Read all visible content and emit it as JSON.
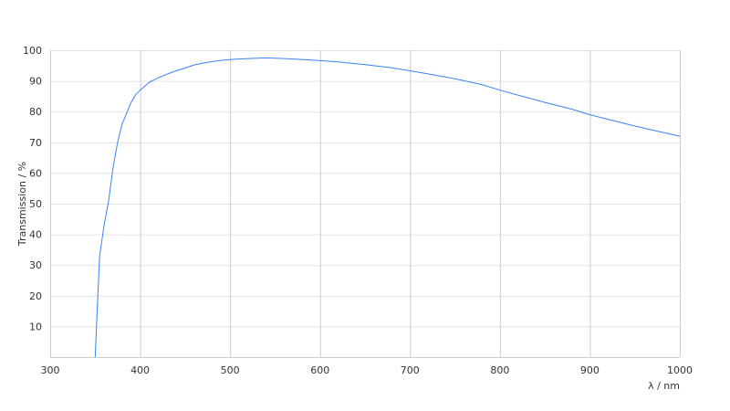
{
  "chart_data": {
    "type": "line",
    "title": "",
    "xlabel": "λ / nm",
    "ylabel": "Transmission / %",
    "xlim": [
      300,
      1000
    ],
    "ylim": [
      0,
      100
    ],
    "xticks": [
      300,
      400,
      500,
      600,
      700,
      800,
      900,
      1000
    ],
    "yticks": [
      10,
      20,
      30,
      40,
      50,
      60,
      70,
      80,
      90,
      100
    ],
    "grid": true,
    "line_color": "#3b82f6",
    "series": [
      {
        "x": [
          350,
          353,
          355,
          360,
          365,
          370,
          375,
          380,
          385,
          390,
          395,
          400,
          410,
          420,
          430,
          440,
          450,
          460,
          470,
          480,
          490,
          500,
          520,
          540,
          560,
          580,
          600,
          620,
          650,
          680,
          700,
          720,
          750,
          780,
          800,
          820,
          850,
          880,
          900,
          920,
          950,
          980,
          1000
        ],
        "y": [
          0,
          20,
          33,
          43,
          51,
          62,
          70,
          76,
          79.5,
          83,
          85.5,
          87,
          89.5,
          91,
          92.2,
          93.3,
          94.2,
          95.2,
          95.8,
          96.3,
          96.7,
          97,
          97.3,
          97.5,
          97.3,
          97,
          96.6,
          96.2,
          95.3,
          94.3,
          93.3,
          92.3,
          90.7,
          88.8,
          87,
          85.4,
          83,
          80.8,
          79,
          77.5,
          75.3,
          73.3,
          72
        ]
      }
    ]
  }
}
